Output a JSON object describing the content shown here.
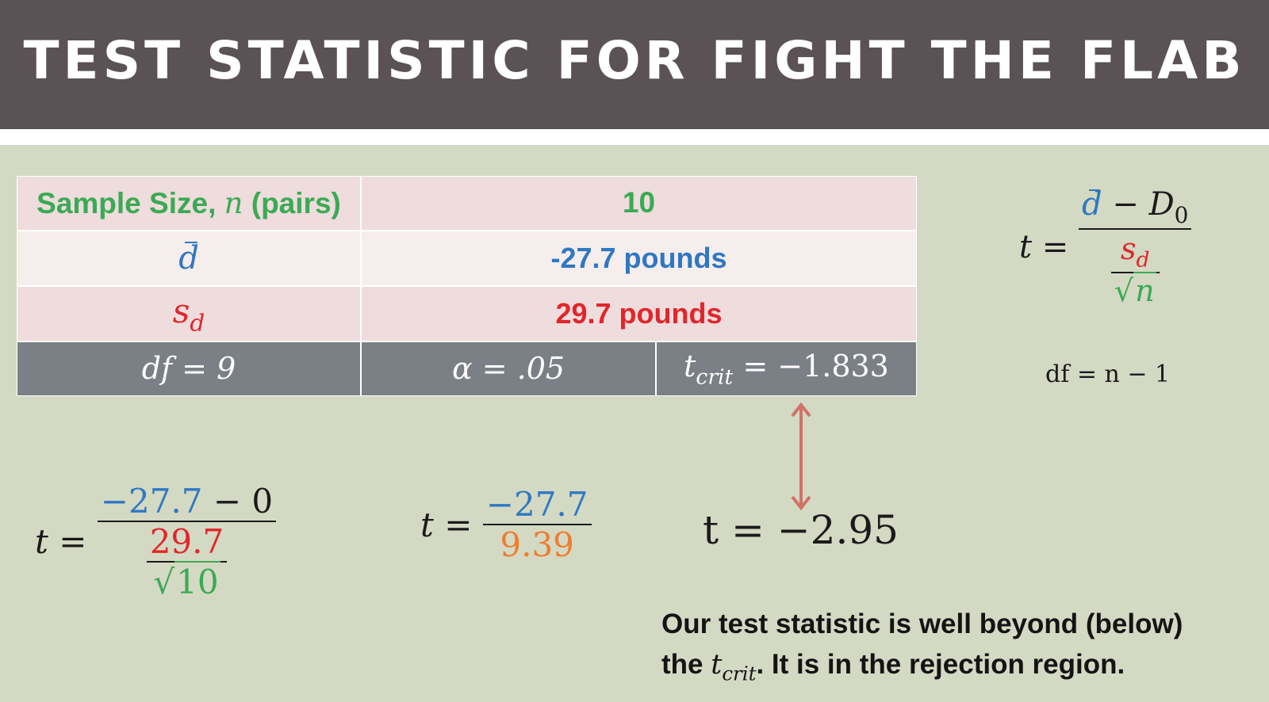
{
  "header": {
    "title": "TEST STATISTIC FOR FIGHT THE FLAB"
  },
  "table": {
    "sample_label_pre": "Sample Size, ",
    "sample_label_var": "n",
    "sample_label_post": " (pairs)",
    "n_value": "10",
    "dbar_symbol": "d",
    "dbar_value": "-27.7 pounds",
    "sd_symbol": "s",
    "sd_sub": "d",
    "sd_value": "29.7 pounds",
    "df_text": "df = 9",
    "alpha_text": "α = .05",
    "tcrit_var": "t",
    "tcrit_sub": "crit",
    "tcrit_rest": " = −1.833"
  },
  "general_formula": {
    "lhs": "t =",
    "num_d": "d",
    "num_rest": " − D",
    "num_sub": "0",
    "den_s": "s",
    "den_sub": "d",
    "den_root": "n"
  },
  "df_note": "df = n − 1",
  "step1": {
    "lhs": "t =",
    "num_a": "−27.7",
    "num_b": " − 0",
    "den_top": "29.7",
    "den_root": "10"
  },
  "step2": {
    "lhs": "t =",
    "num": "−27.7",
    "den": "9.39"
  },
  "result": "t = −2.95",
  "conclusion": {
    "line1": "Our test statistic is well beyond (below)",
    "line2_pre": "the ",
    "line2_var": "t",
    "line2_sub": "crit",
    "line2_post": ". It is in the rejection region."
  },
  "colors": {
    "header_bg": "#5a5254",
    "slide_bg": "#d4d9c3",
    "green": "#3aaa55",
    "blue": "#2e78c2",
    "red": "#e0262b",
    "orange": "#ee7d2d",
    "arrow": "#cf7367"
  },
  "icons": {
    "arrow": "double-headed-vertical-arrow"
  }
}
